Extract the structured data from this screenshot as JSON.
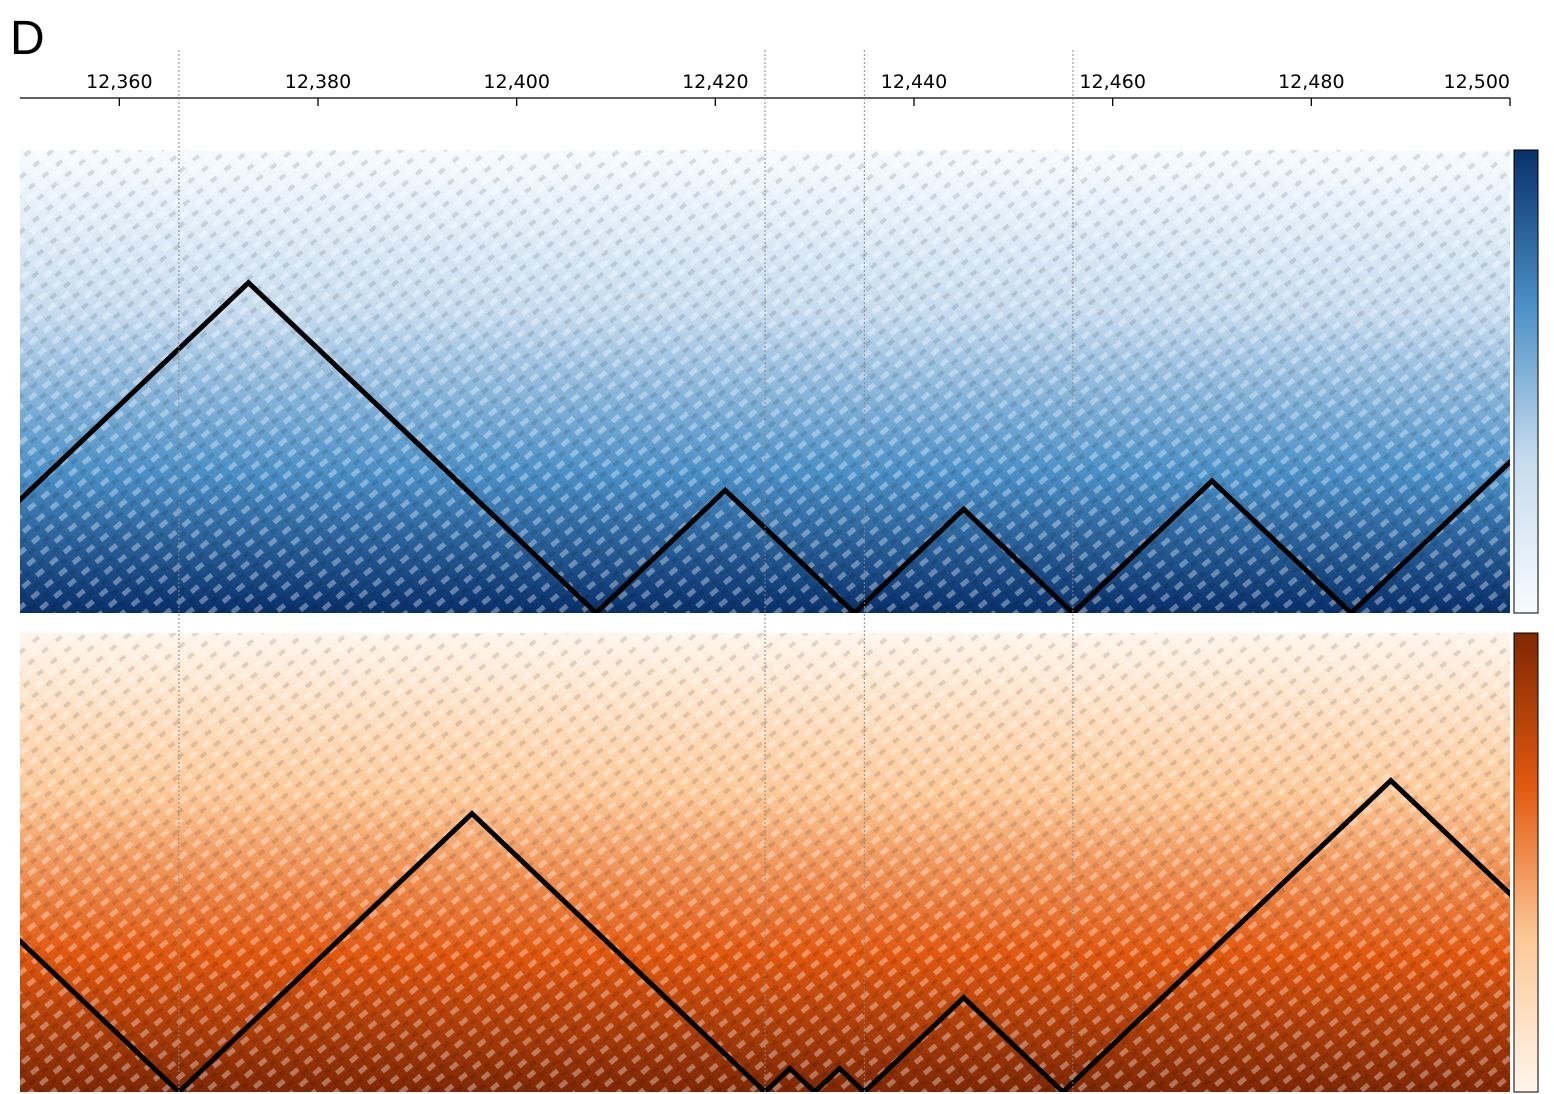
{
  "panel_label": "D",
  "chart_data": {
    "type": "tad-heatmap",
    "xlim": [
      12350,
      12500
    ],
    "xticks": [
      {
        "value": 12360,
        "label": "12,360"
      },
      {
        "value": 12380,
        "label": "12,380"
      },
      {
        "value": 12400,
        "label": "12,400"
      },
      {
        "value": 12420,
        "label": "12,420"
      },
      {
        "value": 12440,
        "label": "12,440"
      },
      {
        "value": 12460,
        "label": "12,460"
      },
      {
        "value": 12480,
        "label": "12,480"
      },
      {
        "value": 12500,
        "label": "12,500"
      }
    ],
    "boundary_lines": [
      12366,
      12425,
      12435,
      12456
    ],
    "panels": [
      {
        "colors": [
          "#f7fbff",
          "#c6dbef",
          "#4a8fc6",
          "#08306b"
        ],
        "tad_boundaries": [
          12338,
          12408,
          12434,
          12456,
          12484,
          12516
        ]
      },
      {
        "colors": [
          "#fff5eb",
          "#fdc897",
          "#e2580f",
          "#7f2704"
        ],
        "tad_boundaries": [
          12320,
          12366,
          12425,
          12430,
          12435,
          12455,
          12521
        ]
      }
    ]
  }
}
